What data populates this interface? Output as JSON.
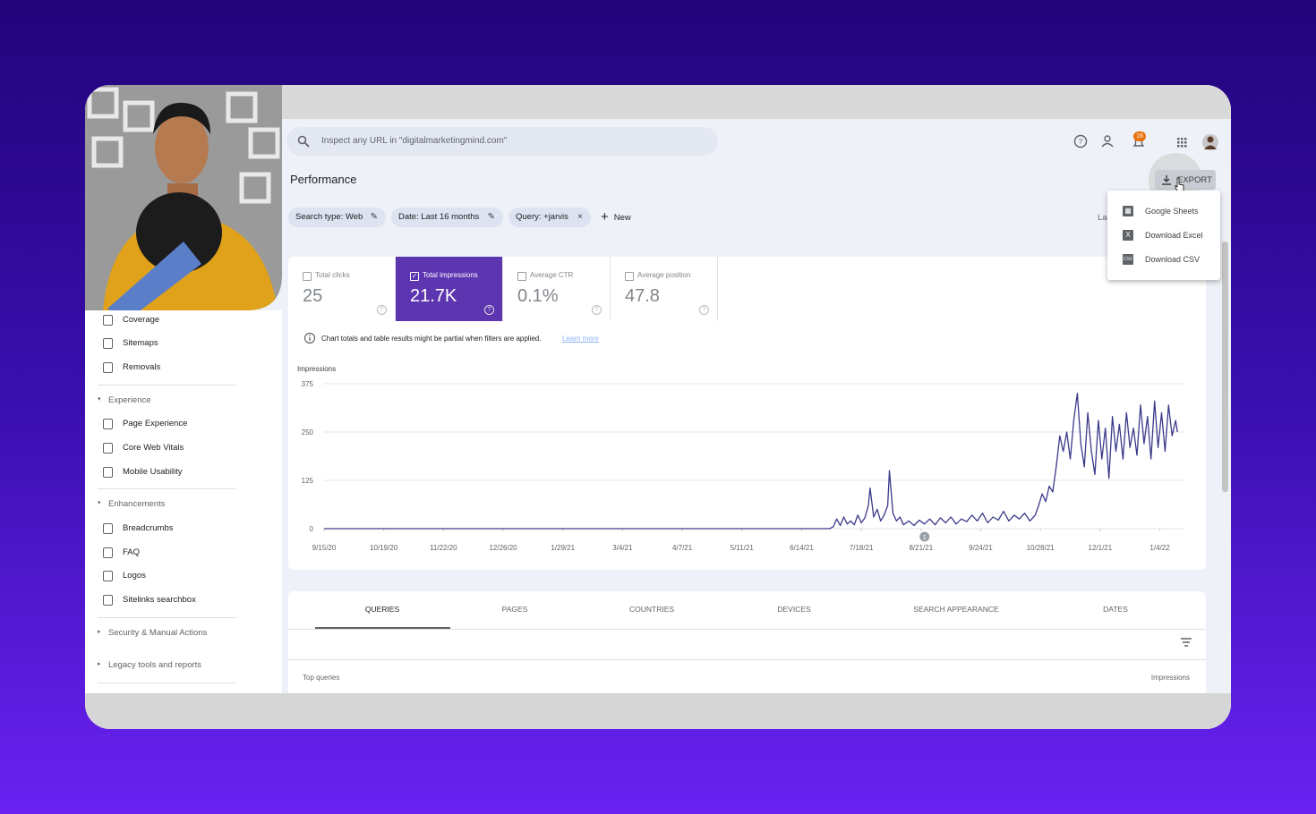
{
  "search": {
    "placeholder": "Inspect any URL in \"digitalmarketingmind.com\""
  },
  "notifications": {
    "count": "16"
  },
  "header": {
    "title": "Performance",
    "export": "EXPORT"
  },
  "export_menu": [
    "Google Sheets",
    "Download Excel",
    "Download CSV"
  ],
  "filters": {
    "chips": [
      "Search type: Web",
      "Date: Last 16 months",
      "Query: +jarvis"
    ],
    "new": "New",
    "truncated": "La"
  },
  "metrics": [
    {
      "label": "Total clicks",
      "value": "25"
    },
    {
      "label": "Total impressions",
      "value": "21.7K"
    },
    {
      "label": "Average CTR",
      "value": "0.1%"
    },
    {
      "label": "Average position",
      "value": "47.8"
    }
  ],
  "notice": {
    "text": "Chart totals and table results might be partial when filters are applied.",
    "link": "Learn more"
  },
  "chart_data": {
    "type": "line",
    "y_label": "Impressions",
    "color": "#3b3a8a",
    "grid": true,
    "ylim": [
      0,
      375
    ],
    "yticks": [
      0,
      125,
      250,
      375
    ],
    "xlim": [
      0,
      490
    ],
    "xticks": [
      {
        "value": 0,
        "label": "9/15/20"
      },
      {
        "value": 34,
        "label": "10/19/20"
      },
      {
        "value": 68,
        "label": "11/22/20"
      },
      {
        "value": 102,
        "label": "12/26/20"
      },
      {
        "value": 136,
        "label": "1/29/21"
      },
      {
        "value": 170,
        "label": "3/4/21"
      },
      {
        "value": 204,
        "label": "4/7/21"
      },
      {
        "value": 238,
        "label": "5/11/21"
      },
      {
        "value": 272,
        "label": "6/14/21"
      },
      {
        "value": 306,
        "label": "7/18/21"
      },
      {
        "value": 340,
        "label": "8/21/21"
      },
      {
        "value": 374,
        "label": "9/24/21"
      },
      {
        "value": 408,
        "label": "10/28/21"
      },
      {
        "value": 442,
        "label": "12/1/21"
      },
      {
        "value": 476,
        "label": "1/4/22"
      }
    ],
    "x": [
      0,
      100,
      200,
      288,
      290,
      292,
      294,
      296,
      298,
      300,
      302,
      304,
      306,
      308,
      310,
      311,
      313,
      315,
      317,
      319,
      321,
      322,
      324,
      326,
      328,
      330,
      333,
      336,
      339,
      342,
      345,
      348,
      351,
      354,
      357,
      360,
      363,
      366,
      369,
      372,
      375,
      378,
      381,
      384,
      387,
      390,
      393,
      396,
      399,
      402,
      405,
      407,
      409,
      411,
      413,
      415,
      417,
      419,
      421,
      423,
      425,
      427,
      429,
      431,
      433,
      435,
      437,
      439,
      441,
      443,
      445,
      447,
      449,
      451,
      453,
      455,
      457,
      459,
      461,
      463,
      465,
      467,
      469,
      471,
      473,
      475,
      477,
      479,
      481,
      483,
      485,
      486
    ],
    "values": [
      0,
      0,
      0,
      0,
      5,
      25,
      8,
      30,
      12,
      20,
      10,
      35,
      15,
      28,
      60,
      105,
      30,
      50,
      20,
      35,
      60,
      150,
      40,
      20,
      30,
      10,
      20,
      8,
      22,
      12,
      25,
      10,
      28,
      15,
      30,
      12,
      25,
      18,
      35,
      20,
      40,
      15,
      30,
      22,
      45,
      20,
      35,
      25,
      40,
      20,
      35,
      60,
      90,
      70,
      110,
      95,
      160,
      240,
      200,
      250,
      180,
      280,
      350,
      220,
      160,
      300,
      200,
      140,
      280,
      180,
      260,
      130,
      290,
      200,
      270,
      180,
      300,
      210,
      260,
      190,
      320,
      220,
      290,
      180,
      330,
      210,
      300,
      200,
      320,
      240,
      280,
      250
    ],
    "annotations": [
      {
        "x": 342,
        "label": "1"
      }
    ]
  },
  "sidebar": {
    "index": [
      "Coverage",
      "Sitemaps",
      "Removals"
    ],
    "sections": [
      {
        "title": "Experience",
        "items": [
          "Page Experience",
          "Core Web Vitals",
          "Mobile Usability"
        ]
      },
      {
        "title": "Enhancements",
        "items": [
          "Breadcrumbs",
          "FAQ",
          "Logos",
          "Sitelinks searchbox"
        ]
      }
    ],
    "collapsed": [
      "Security & Manual Actions",
      "Legacy tools and reports"
    ]
  },
  "tabs": [
    "QUERIES",
    "PAGES",
    "COUNTRIES",
    "DEVICES",
    "SEARCH APPEARANCE",
    "DATES"
  ],
  "table": {
    "first_column": "Top queries",
    "metric_column": "Impressions"
  }
}
